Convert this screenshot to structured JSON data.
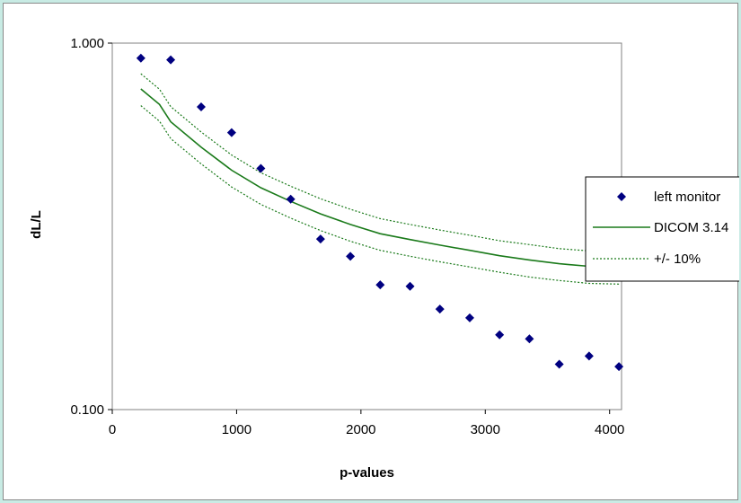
{
  "chart_data": {
    "type": "scatter",
    "title": "",
    "xlabel": "p-values",
    "ylabel": "dL/L",
    "xlim": [
      0,
      4096
    ],
    "ylim": [
      0.1,
      1.0
    ],
    "yscale": "log",
    "grid": false,
    "legend_position": "right",
    "x_ticks": [
      {
        "value": 0,
        "label": "0"
      },
      {
        "value": 1000,
        "label": "1000"
      },
      {
        "value": 2000,
        "label": "2000"
      },
      {
        "value": 3000,
        "label": "3000"
      },
      {
        "value": 4000,
        "label": "4000"
      }
    ],
    "y_ticks": [
      {
        "value": 1.0,
        "label": "1.000"
      },
      {
        "value": 0.1,
        "label": "0.100"
      }
    ],
    "series": [
      {
        "name": "left monitor",
        "kind": "markers",
        "color": "#000080",
        "points": [
          {
            "x": 230,
            "y": 0.91
          },
          {
            "x": 470,
            "y": 0.9
          },
          {
            "x": 715,
            "y": 0.67
          },
          {
            "x": 960,
            "y": 0.57
          },
          {
            "x": 1195,
            "y": 0.455
          },
          {
            "x": 1435,
            "y": 0.375
          },
          {
            "x": 1675,
            "y": 0.292
          },
          {
            "x": 1915,
            "y": 0.262
          },
          {
            "x": 2155,
            "y": 0.219
          },
          {
            "x": 2395,
            "y": 0.217
          },
          {
            "x": 2635,
            "y": 0.188
          },
          {
            "x": 2875,
            "y": 0.178
          },
          {
            "x": 3115,
            "y": 0.16
          },
          {
            "x": 3355,
            "y": 0.156
          },
          {
            "x": 3595,
            "y": 0.133
          },
          {
            "x": 3835,
            "y": 0.14
          },
          {
            "x": 4075,
            "y": 0.131
          }
        ]
      },
      {
        "name": "DICOM 3.14",
        "kind": "line",
        "color": "#1a7a1a",
        "points": [
          {
            "x": 230,
            "y": 0.75
          },
          {
            "x": 380,
            "y": 0.68
          },
          {
            "x": 470,
            "y": 0.61
          },
          {
            "x": 715,
            "y": 0.52
          },
          {
            "x": 960,
            "y": 0.45
          },
          {
            "x": 1195,
            "y": 0.403
          },
          {
            "x": 1435,
            "y": 0.37
          },
          {
            "x": 1675,
            "y": 0.342
          },
          {
            "x": 1915,
            "y": 0.32
          },
          {
            "x": 2155,
            "y": 0.302
          },
          {
            "x": 2395,
            "y": 0.291
          },
          {
            "x": 2635,
            "y": 0.281
          },
          {
            "x": 2875,
            "y": 0.272
          },
          {
            "x": 3115,
            "y": 0.263
          },
          {
            "x": 3355,
            "y": 0.256
          },
          {
            "x": 3595,
            "y": 0.25
          },
          {
            "x": 3835,
            "y": 0.246
          },
          {
            "x": 4075,
            "y": 0.245
          }
        ]
      },
      {
        "name": "+/- 10%",
        "kind": "band",
        "color": "#1a7a1a",
        "upper_points": [
          {
            "x": 230,
            "y": 0.825
          },
          {
            "x": 380,
            "y": 0.748
          },
          {
            "x": 470,
            "y": 0.671
          },
          {
            "x": 715,
            "y": 0.572
          },
          {
            "x": 960,
            "y": 0.495
          },
          {
            "x": 1195,
            "y": 0.443
          },
          {
            "x": 1435,
            "y": 0.407
          },
          {
            "x": 1675,
            "y": 0.376
          },
          {
            "x": 1915,
            "y": 0.352
          },
          {
            "x": 2155,
            "y": 0.332
          },
          {
            "x": 2395,
            "y": 0.32
          },
          {
            "x": 2635,
            "y": 0.309
          },
          {
            "x": 2875,
            "y": 0.299
          },
          {
            "x": 3115,
            "y": 0.289
          },
          {
            "x": 3355,
            "y": 0.282
          },
          {
            "x": 3595,
            "y": 0.275
          },
          {
            "x": 3835,
            "y": 0.271
          },
          {
            "x": 4075,
            "y": 0.27
          }
        ],
        "lower_points": [
          {
            "x": 230,
            "y": 0.675
          },
          {
            "x": 380,
            "y": 0.612
          },
          {
            "x": 470,
            "y": 0.549
          },
          {
            "x": 715,
            "y": 0.468
          },
          {
            "x": 960,
            "y": 0.405
          },
          {
            "x": 1195,
            "y": 0.363
          },
          {
            "x": 1435,
            "y": 0.333
          },
          {
            "x": 1675,
            "y": 0.308
          },
          {
            "x": 1915,
            "y": 0.288
          },
          {
            "x": 2155,
            "y": 0.272
          },
          {
            "x": 2395,
            "y": 0.262
          },
          {
            "x": 2635,
            "y": 0.253
          },
          {
            "x": 2875,
            "y": 0.245
          },
          {
            "x": 3115,
            "y": 0.237
          },
          {
            "x": 3355,
            "y": 0.23
          },
          {
            "x": 3595,
            "y": 0.225
          },
          {
            "x": 3835,
            "y": 0.221
          },
          {
            "x": 4075,
            "y": 0.22
          }
        ]
      }
    ]
  }
}
